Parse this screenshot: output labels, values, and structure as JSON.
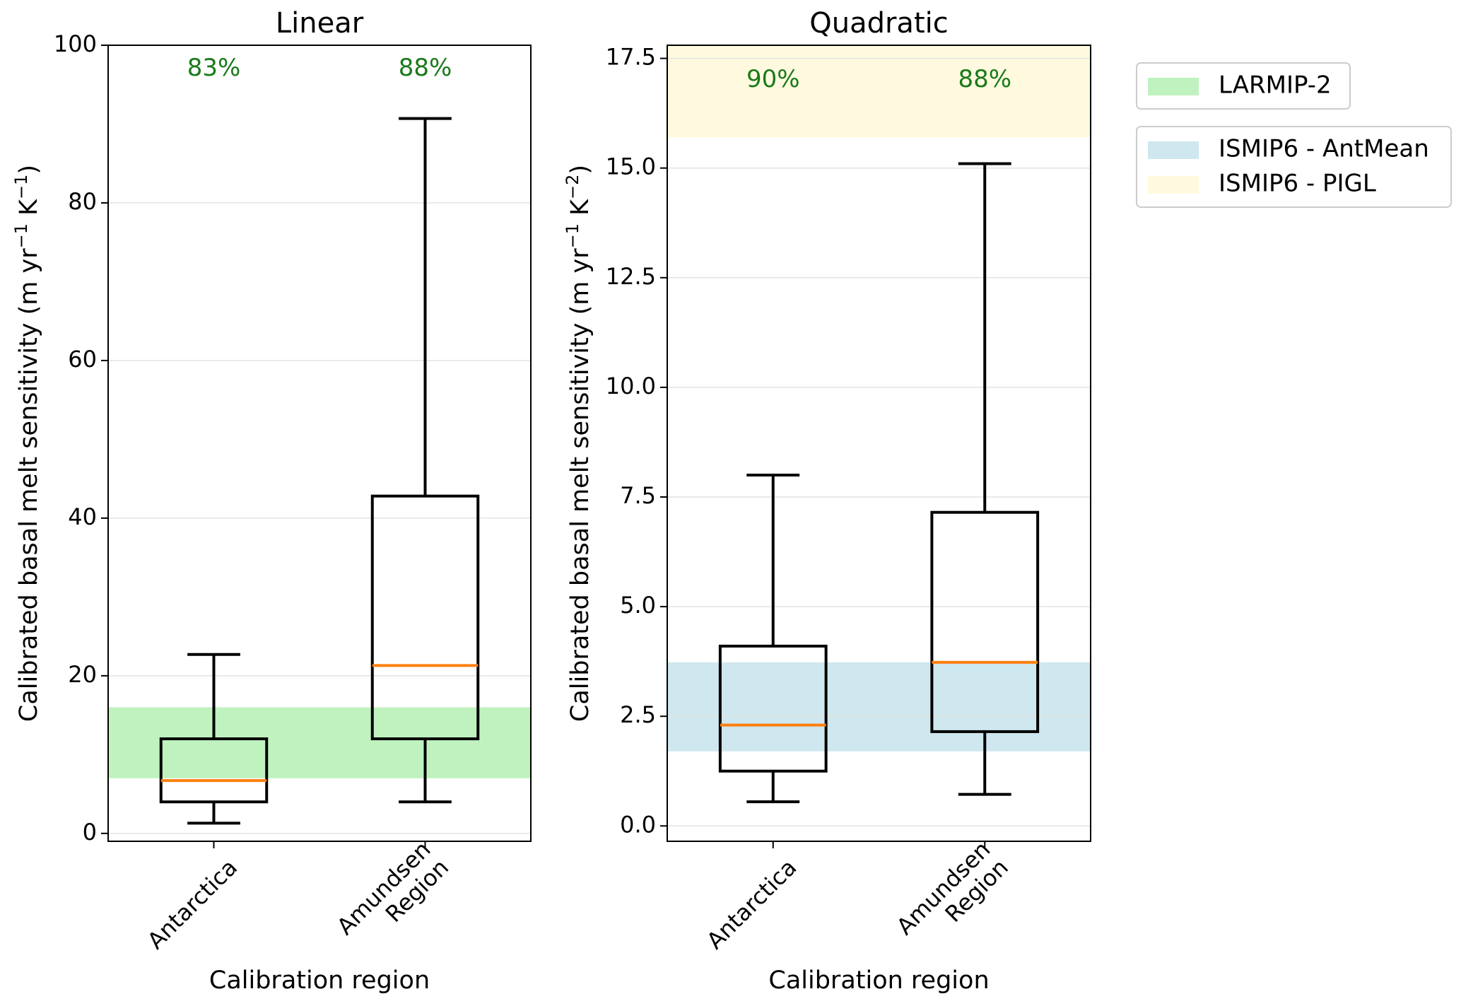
{
  "figure": {
    "legend_groups": [
      [
        {
          "label": "LARMIP-2",
          "color": "#bff2bf"
        }
      ],
      [
        {
          "label": "ISMIP6 - AntMean",
          "color": "#cfe7ee"
        },
        {
          "label": "ISMIP6 - PIGL",
          "color": "#fffadf"
        }
      ]
    ]
  },
  "chart_data": [
    {
      "type": "box",
      "title": "Linear",
      "xlabel": "Calibration region",
      "ylabel": "Calibrated basal melt sensitivity (m yr⁻¹ K⁻¹)",
      "ylabel_parts": [
        "Calibrated basal melt sensitivity (m yr",
        "−1",
        " K",
        "−1",
        ")"
      ],
      "ylim": [
        -1,
        100
      ],
      "yticks": [
        0,
        20,
        40,
        60,
        80,
        100
      ],
      "ytick_labels": [
        "0",
        "20",
        "40",
        "60",
        "80",
        "100"
      ],
      "grid": "y",
      "categories": [
        {
          "label_lines": [
            "Antarctica"
          ],
          "label": "Antarctica"
        },
        {
          "label_lines": [
            "Amundsen",
            "Region"
          ],
          "label": "Amundsen Region"
        }
      ],
      "boxes": [
        {
          "whisker_low": 1.3,
          "q1": 4.0,
          "median": 6.7,
          "q3": 12.0,
          "whisker_high": 22.7
        },
        {
          "whisker_low": 4.0,
          "q1": 12.0,
          "median": 21.3,
          "q3": 42.8,
          "whisker_high": 90.7
        }
      ],
      "bands": [
        {
          "name": "LARMIP-2",
          "from": 7.0,
          "to": 16.0,
          "color": "#bff2bf"
        }
      ],
      "annotations": [
        {
          "text": "83%",
          "category": 0,
          "y": 97,
          "color": "#1a7a1a"
        },
        {
          "text": "88%",
          "category": 1,
          "y": 97,
          "color": "#1a7a1a"
        }
      ]
    },
    {
      "type": "box",
      "title": "Quadratic",
      "xlabel": "Calibration region",
      "ylabel": "Calibrated basal melt sensitivity (m yr⁻¹ K⁻²)",
      "ylabel_parts": [
        "Calibrated basal melt sensitivity (m yr",
        "−1",
        " K",
        "−2",
        ")"
      ],
      "ylim": [
        -0.35,
        17.8
      ],
      "yticks": [
        0,
        2.5,
        5,
        7.5,
        10,
        12.5,
        15,
        17.5
      ],
      "ytick_labels": [
        "0.0",
        "2.5",
        "5.0",
        "7.5",
        "10.0",
        "12.5",
        "15.0",
        "17.5"
      ],
      "grid": "y",
      "categories": [
        {
          "label_lines": [
            "Antarctica"
          ],
          "label": "Antarctica"
        },
        {
          "label_lines": [
            "Amundsen",
            "Region"
          ],
          "label": "Amundsen Region"
        }
      ],
      "boxes": [
        {
          "whisker_low": 0.55,
          "q1": 1.25,
          "median": 2.3,
          "q3": 4.1,
          "whisker_high": 8.0
        },
        {
          "whisker_low": 0.72,
          "q1": 2.15,
          "median": 3.73,
          "q3": 7.15,
          "whisker_high": 15.1
        }
      ],
      "bands": [
        {
          "name": "ISMIP6 - AntMean",
          "from": 1.7,
          "to": 3.73,
          "color": "#cfe7ee"
        },
        {
          "name": "ISMIP6 - PIGL",
          "from": 15.7,
          "to": 17.8,
          "color": "#fffadf"
        }
      ],
      "annotations": [
        {
          "text": "90%",
          "category": 0,
          "y": 17.0,
          "color": "#1a7a1a"
        },
        {
          "text": "88%",
          "category": 1,
          "y": 17.0,
          "color": "#1a7a1a"
        }
      ]
    }
  ]
}
